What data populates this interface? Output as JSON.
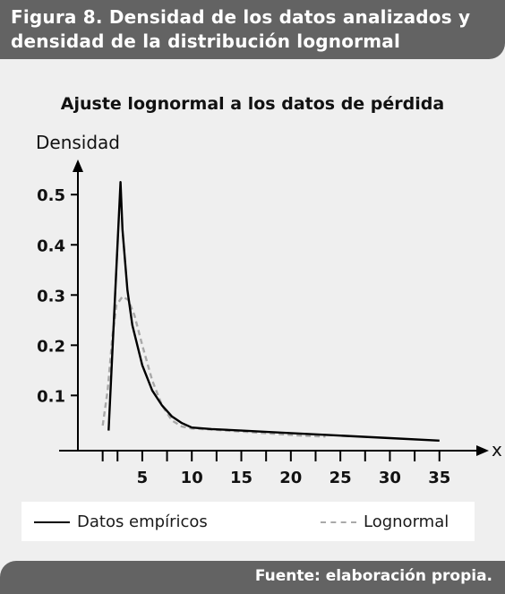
{
  "header": {
    "title": "Figura 8. Densidad de los datos analizados y densidad de la distribución lognormal"
  },
  "footer": {
    "source": "Fuente: elaboración propia."
  },
  "colors": {
    "band": "#636363",
    "panel": "#efefef",
    "empirical": "#000000",
    "lognormal": "#a9a9a9"
  },
  "chart_data": {
    "type": "line",
    "title": "Ajuste lognormal a los datos de pérdida",
    "xlabel": "x",
    "ylabel": "Densidad",
    "xlim": [
      -1.5,
      39
    ],
    "ylim": [
      -0.01,
      0.57
    ],
    "x_ticks": [
      5,
      10,
      15,
      20,
      25,
      30,
      35
    ],
    "y_ticks": [
      0.1,
      0.2,
      0.3,
      0.4,
      0.5
    ],
    "x_tick_labels": [
      "5",
      "10",
      "15",
      "20",
      "25",
      "30",
      "35"
    ],
    "y_tick_labels": [
      "0.1",
      "0.2",
      "0.3",
      "0.4",
      "0.5"
    ],
    "grid": false,
    "legend": "bottom",
    "series": [
      {
        "name": "Datos empíricos",
        "style": "solid",
        "x": [
          1.6,
          2.8,
          3.0,
          3.5,
          4.0,
          5.0,
          6.0,
          7.0,
          8.0,
          9.0,
          10.0,
          12.0,
          15.0,
          20.0,
          25.0,
          30.0,
          35.0
        ],
        "y": [
          0.03,
          0.525,
          0.43,
          0.31,
          0.24,
          0.16,
          0.11,
          0.08,
          0.058,
          0.045,
          0.036,
          0.033,
          0.03,
          0.025,
          0.02,
          0.015,
          0.01
        ]
      },
      {
        "name": "Lognormal",
        "style": "dashed",
        "x": [
          1.0,
          1.5,
          2.0,
          2.4,
          3.0,
          3.6,
          4.2,
          5.0,
          6.0,
          7.0,
          8.0,
          9.0,
          10.0,
          12.0,
          15.0,
          18.0,
          21.0,
          23.5
        ],
        "y": [
          0.04,
          0.11,
          0.22,
          0.28,
          0.297,
          0.29,
          0.26,
          0.2,
          0.13,
          0.08,
          0.05,
          0.038,
          0.034,
          0.032,
          0.028,
          0.024,
          0.02,
          0.018
        ]
      }
    ]
  }
}
